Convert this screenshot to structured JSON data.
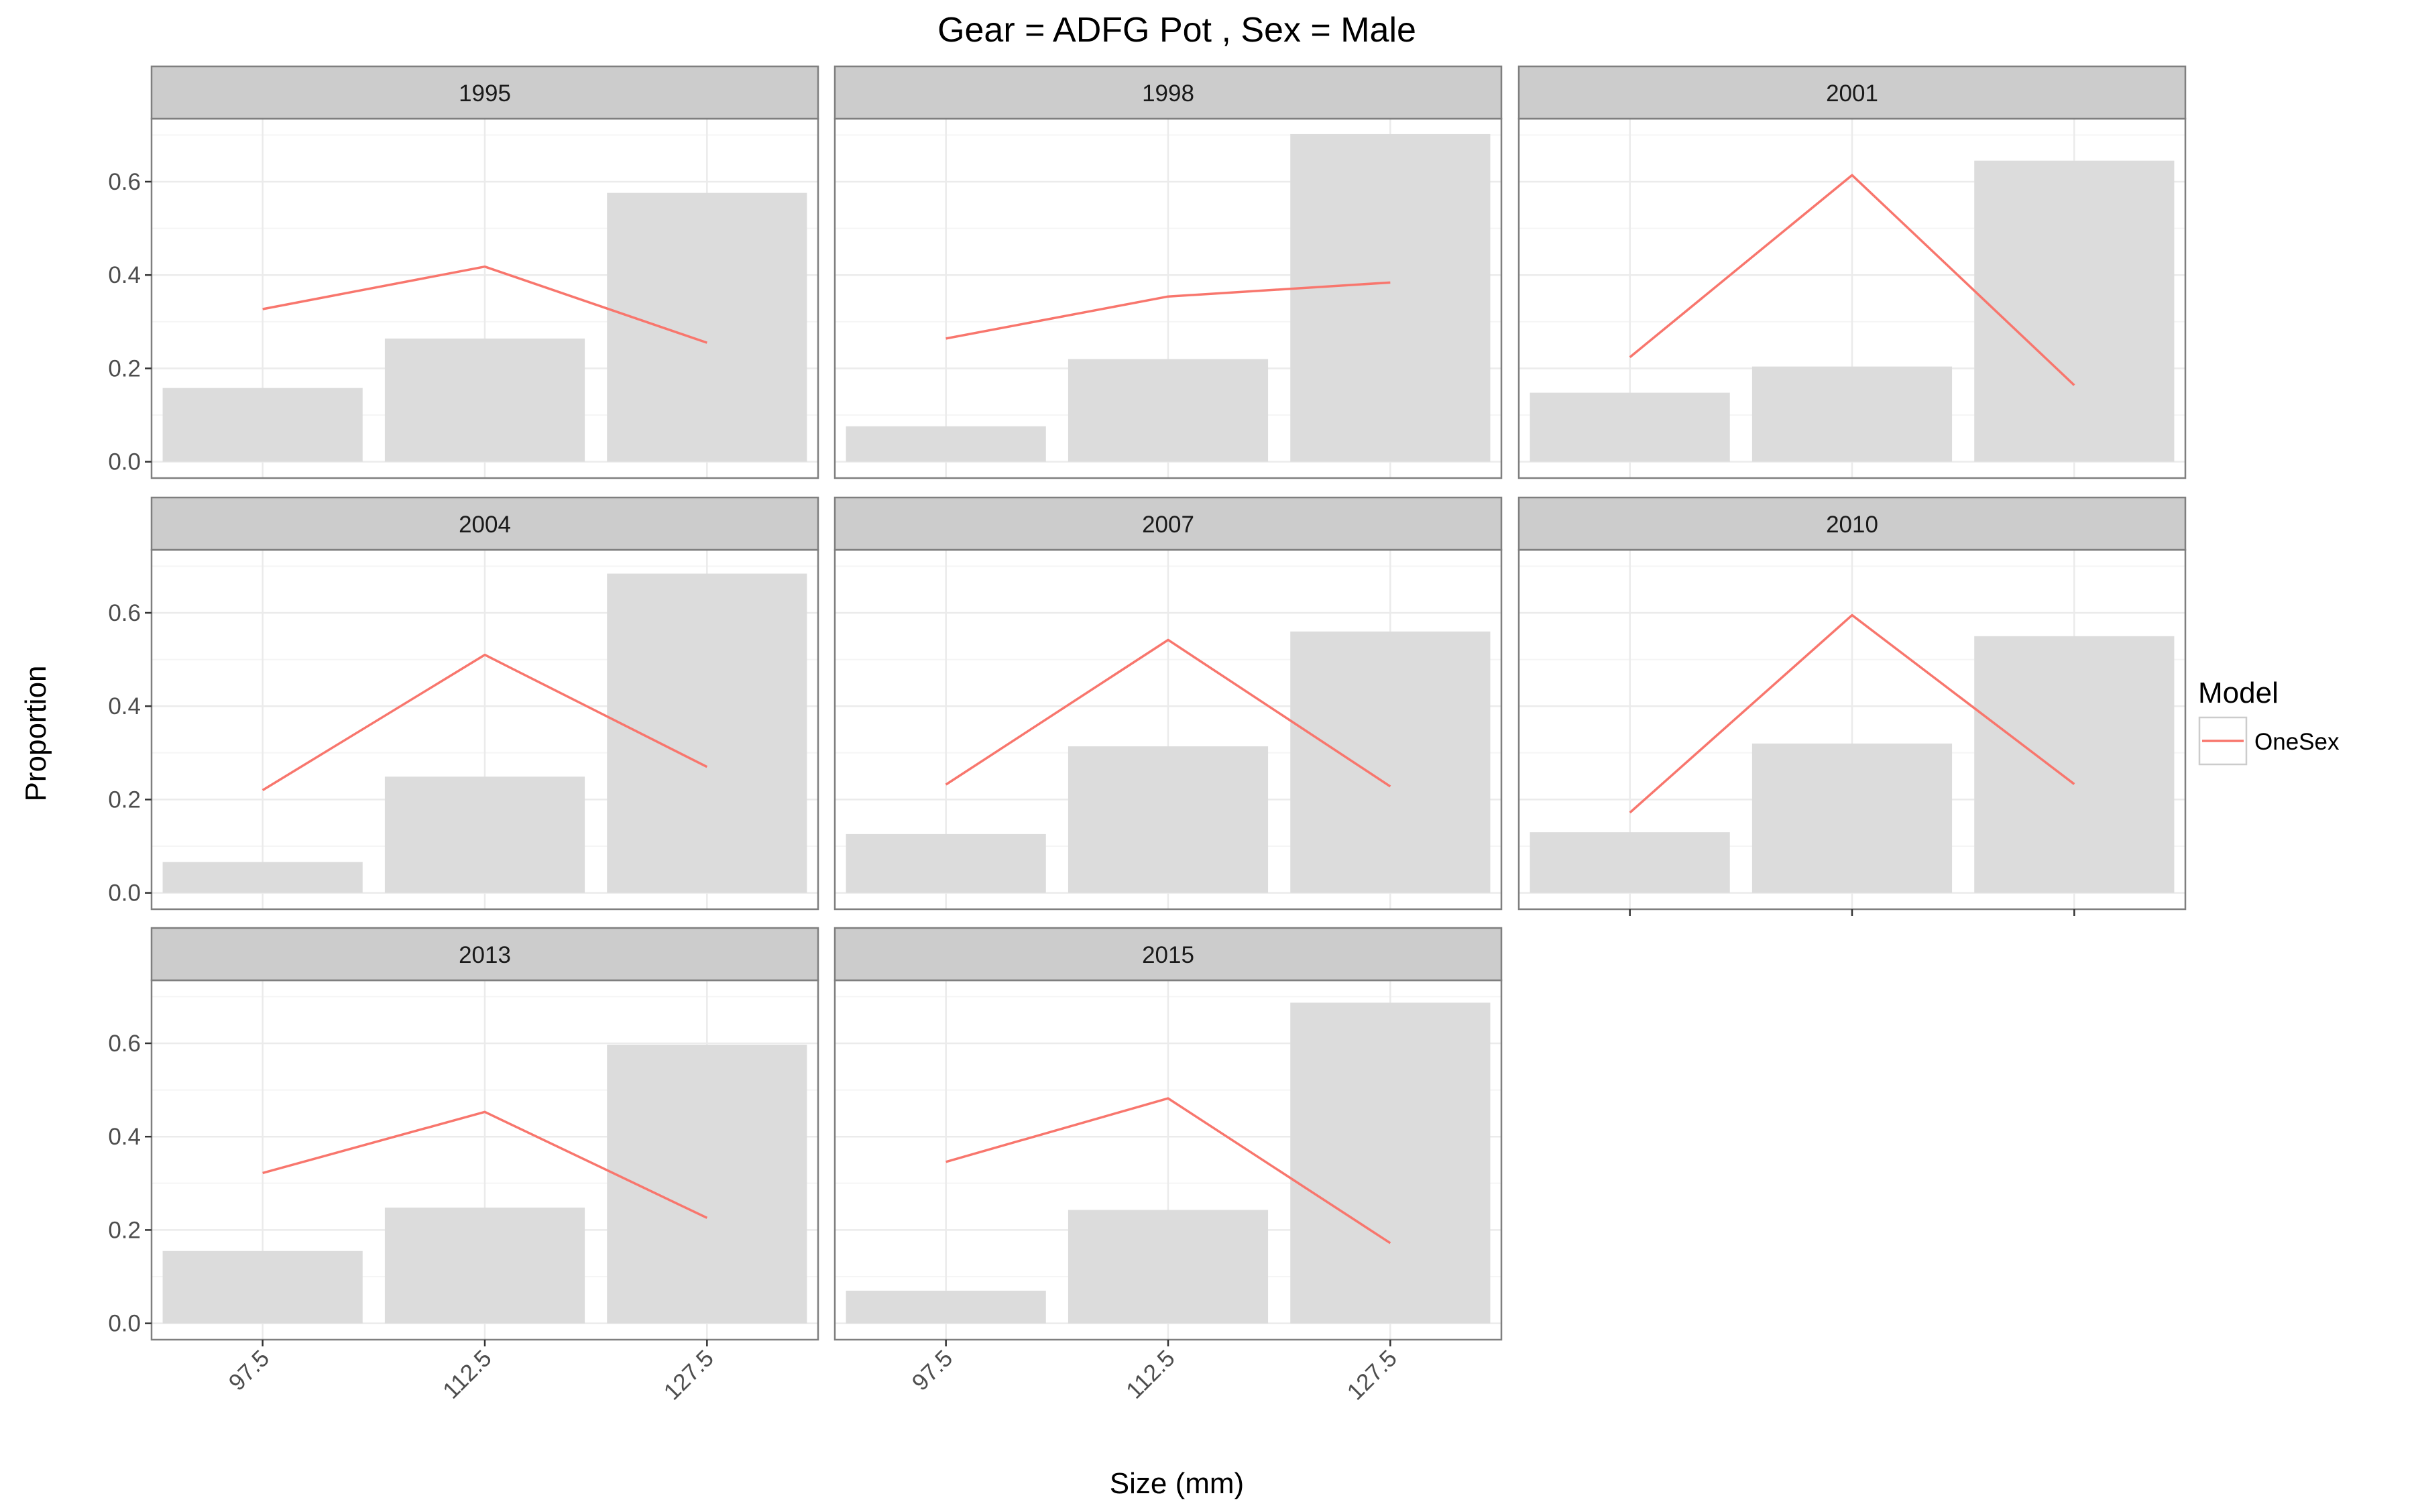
{
  "title": "Gear = ADFG Pot , Sex = Male",
  "chart_data": {
    "type": "bar",
    "title": "Gear = ADFG Pot , Sex = Male",
    "xlabel": "Size (mm)",
    "ylabel": "Proportion",
    "categories": [
      "97.5",
      "112.5",
      "127.5"
    ],
    "ylim": [
      -0.035,
      0.735
    ],
    "yticks": [
      "0.0",
      "0.2",
      "0.4",
      "0.6"
    ],
    "grid": true,
    "legend": {
      "title": "Model",
      "entries": [
        "OneSex"
      ],
      "position": "right"
    },
    "colors": {
      "bar": "#dcdcdc",
      "line": "#f8766d",
      "strip": "#cccccc",
      "panel_border": "#7f7f7f",
      "grid_major": "#ebebeb",
      "grid_minor": "#f5f5f5"
    },
    "panels": [
      {
        "year": "1995",
        "observed": [
          0.158,
          0.264,
          0.576
        ],
        "model": [
          0.327,
          0.418,
          0.255
        ]
      },
      {
        "year": "1998",
        "observed": [
          0.076,
          0.22,
          0.702
        ],
        "model": [
          0.264,
          0.354,
          0.384
        ]
      },
      {
        "year": "2001",
        "observed": [
          0.148,
          0.204,
          0.645
        ],
        "model": [
          0.224,
          0.614,
          0.164
        ]
      },
      {
        "year": "2004",
        "observed": [
          0.066,
          0.249,
          0.684
        ],
        "model": [
          0.22,
          0.51,
          0.27
        ]
      },
      {
        "year": "2007",
        "observed": [
          0.126,
          0.314,
          0.56
        ],
        "model": [
          0.232,
          0.542,
          0.228
        ]
      },
      {
        "year": "2010",
        "observed": [
          0.13,
          0.32,
          0.55
        ],
        "model": [
          0.172,
          0.595,
          0.233
        ]
      },
      {
        "year": "2013",
        "observed": [
          0.155,
          0.248,
          0.597
        ],
        "model": [
          0.322,
          0.453,
          0.226
        ]
      },
      {
        "year": "2015",
        "observed": [
          0.07,
          0.243,
          0.687
        ],
        "model": [
          0.346,
          0.482,
          0.172
        ]
      }
    ]
  }
}
